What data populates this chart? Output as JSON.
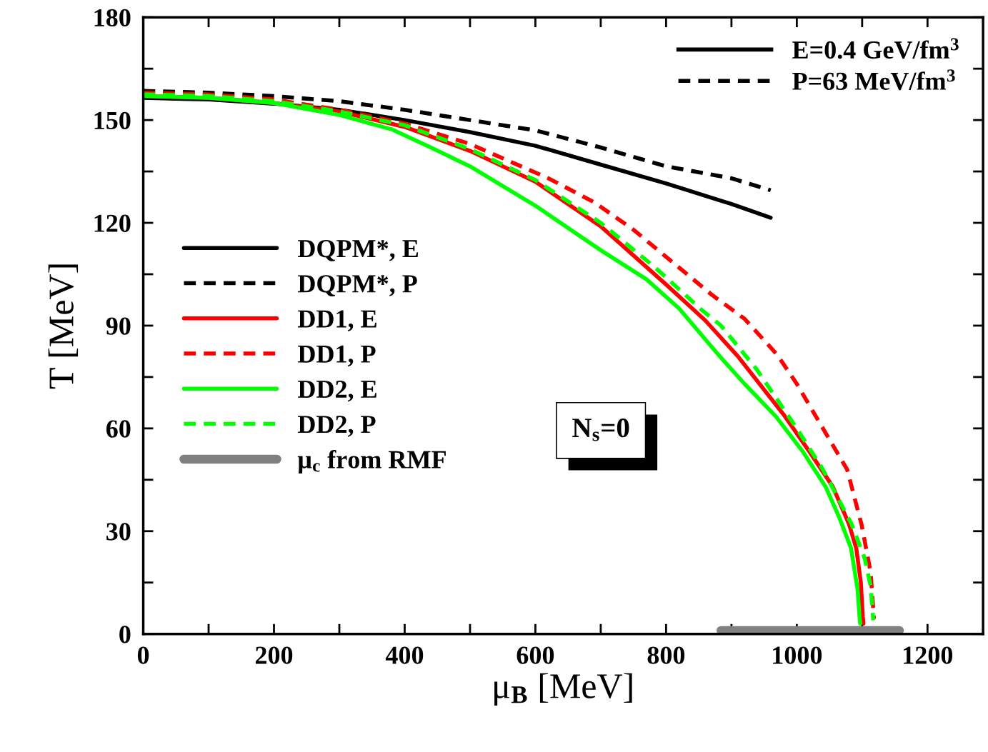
{
  "chart_data": {
    "type": "line",
    "xlabel": "μ$_{B}$ [MeV]",
    "ylabel": "T [MeV]",
    "xlim": [
      0,
      1285
    ],
    "ylim": [
      0,
      180
    ],
    "xticks": [
      0,
      {
        "value": 100,
        "label": null
      },
      200,
      {
        "value": 300,
        "label": null
      },
      400,
      {
        "value": 500,
        "label": null
      },
      600,
      {
        "value": 700,
        "label": null
      },
      800,
      {
        "value": 900,
        "label": null
      },
      1000,
      {
        "value": 1100,
        "label": null
      },
      1200
    ],
    "yticks": [
      0,
      {
        "value": 15,
        "label": null
      },
      30,
      {
        "value": 45,
        "label": null
      },
      60,
      {
        "value": 75,
        "label": null
      },
      90,
      {
        "value": 105,
        "label": null
      },
      120,
      {
        "value": 135,
        "label": null
      },
      150,
      {
        "value": 165,
        "label": null
      },
      180
    ],
    "grid": false,
    "legend": "left",
    "annotations": [
      "N$_{s}$=0",
      "E=0.4 GeV/fm$^{3}$",
      "P=63 MeV/fm$^{3}$"
    ],
    "series": [
      {
        "name": "DQPM*, E",
        "color": "#000000",
        "line_style": "solid",
        "x": [
          0,
          100,
          200,
          300,
          400,
          500,
          600,
          700,
          800,
          900,
          960
        ],
        "values": [
          156.5,
          156,
          154.8,
          153,
          150,
          146.5,
          142.5,
          137,
          131.5,
          125.5,
          121.5
        ]
      },
      {
        "name": "DQPM*, P",
        "color": "#000000",
        "line_style": "dashed",
        "x": [
          0,
          100,
          200,
          300,
          400,
          500,
          600,
          700,
          800,
          900,
          960
        ],
        "values": [
          158.5,
          158,
          157,
          155.5,
          153,
          150,
          147,
          142,
          136.5,
          133,
          129.5
        ]
      },
      {
        "name": "DD1, E",
        "color": "#ff0000",
        "line_style": "solid",
        "x": [
          0,
          100,
          200,
          300,
          400,
          500,
          600,
          700,
          800,
          860,
          910,
          980,
          1020,
          1055,
          1080,
          1091,
          1098,
          1101,
          1102
        ],
        "values": [
          157,
          156.5,
          155,
          152.5,
          148,
          141,
          132,
          119,
          102,
          91.5,
          81,
          64,
          53,
          43,
          32,
          25,
          15,
          5,
          3
        ]
      },
      {
        "name": "DD1, P",
        "color": "#ff0000",
        "line_style": "dashed",
        "x": [
          0,
          100,
          200,
          300,
          400,
          500,
          560,
          620,
          690,
          750,
          810,
          870,
          920,
          970,
          1000,
          1040,
          1077,
          1099,
          1113,
          1118
        ],
        "values": [
          158,
          157.5,
          156,
          153,
          149,
          143,
          138,
          133,
          126,
          118,
          108.5,
          99,
          92,
          81.5,
          73,
          60,
          48,
          32,
          18,
          4.4
        ]
      },
      {
        "name": "DD2, E",
        "color": "#00ff00",
        "line_style": "solid",
        "x": [
          0,
          100,
          200,
          300,
          380,
          440,
          500,
          600,
          700,
          770,
          820,
          880,
          920,
          968,
          1010,
          1044,
          1065,
          1083,
          1093,
          1096,
          1097
        ],
        "values": [
          157,
          156.5,
          155,
          151.5,
          147.3,
          142,
          136.5,
          125,
          112,
          103.5,
          95,
          81.5,
          73,
          63.5,
          53,
          43,
          34,
          25,
          13,
          5,
          3
        ]
      },
      {
        "name": "DD2, P",
        "color": "#00ff00",
        "line_style": "dashed",
        "x": [
          0,
          100,
          200,
          300,
          400,
          500,
          600,
          700,
          783,
          855,
          884,
          938,
          1000,
          1040,
          1084,
          1104,
          1113,
          1117
        ],
        "values": [
          157.5,
          157,
          155.5,
          152.5,
          148.5,
          141.5,
          132.5,
          120,
          107,
          94.5,
          90,
          77.4,
          60,
          48,
          32,
          22,
          14,
          4
        ]
      },
      {
        "name": "μ$_{c}$ from RMF",
        "color": "#808080",
        "line_style": "solid",
        "x": [
          884,
          1157
        ],
        "values": [
          1,
          1
        ]
      }
    ]
  }
}
